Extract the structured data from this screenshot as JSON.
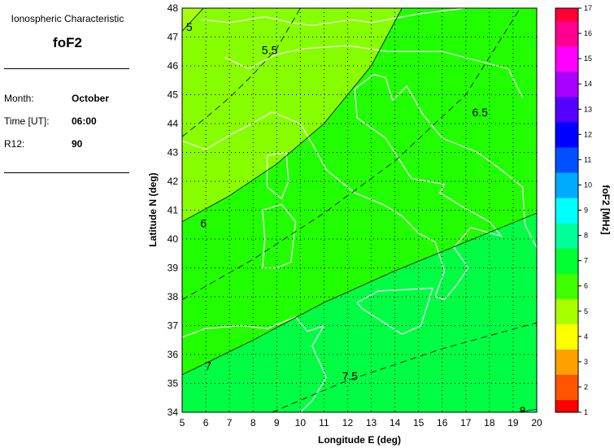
{
  "panel": {
    "heading": "Ionospheric Characteristic",
    "parameter": "foF2",
    "fields": [
      {
        "label": "Month:",
        "value": "October"
      },
      {
        "label": "Time [UT]:",
        "value": "06:00"
      },
      {
        "label": "R12:",
        "value": "90"
      }
    ]
  },
  "chart_data": {
    "type": "heatmap",
    "subtype": "filled contour map",
    "xlabel": "Longitude E (deg)",
    "ylabel": "Latitude N (deg)",
    "xlim": [
      5,
      20
    ],
    "ylim": [
      34,
      48
    ],
    "xticks": [
      5,
      6,
      7,
      8,
      9,
      10,
      11,
      12,
      13,
      14,
      15,
      16,
      17,
      18,
      19,
      20
    ],
    "yticks": [
      34,
      35,
      36,
      37,
      38,
      39,
      40,
      41,
      42,
      43,
      44,
      45,
      46,
      47,
      48
    ],
    "grid": true,
    "colorbar": {
      "label": "foF2 [MHz]",
      "range": [
        1,
        17
      ],
      "ticks": [
        1,
        2,
        3,
        4,
        5,
        6,
        7,
        8,
        9,
        10,
        11,
        12,
        13,
        14,
        15,
        16,
        17
      ],
      "colors": [
        "#ff0000",
        "#ff5500",
        "#ffa000",
        "#ffff00",
        "#a8ff00",
        "#40ff00",
        "#00ff30",
        "#00ff99",
        "#00ffff",
        "#00aaff",
        "#0050ff",
        "#0000ff",
        "#5500ff",
        "#aa00ff",
        "#ff00ff",
        "#ff0090",
        "#ff0030"
      ]
    },
    "contours": [
      {
        "level": "5",
        "style": "solid",
        "points": [
          [
            5,
            47.2
          ],
          [
            5.9,
            48
          ]
        ],
        "label_at": [
          5.3,
          47.35
        ]
      },
      {
        "level": "5.5",
        "style": "dashed",
        "points": [
          [
            5,
            43.55
          ],
          [
            6,
            44.2
          ],
          [
            7,
            44.9
          ],
          [
            8,
            45.7
          ],
          [
            9,
            46.6
          ],
          [
            10,
            48
          ]
        ],
        "label_at": [
          8.7,
          46.55
        ]
      },
      {
        "level": "6",
        "style": "solid",
        "points": [
          [
            5,
            40.6
          ],
          [
            7,
            41.5
          ],
          [
            9,
            42.6
          ],
          [
            11,
            44.0
          ],
          [
            13,
            46.0
          ],
          [
            14.3,
            48
          ]
        ],
        "label_at": [
          5.9,
          40.55
        ]
      },
      {
        "level": "6.5",
        "style": "dashed",
        "points": [
          [
            5,
            37.9
          ],
          [
            8,
            39.3
          ],
          [
            11,
            40.9
          ],
          [
            14,
            42.7
          ],
          [
            17,
            45.0
          ],
          [
            19.3,
            48
          ]
        ],
        "label_at": [
          17.6,
          44.4
        ]
      },
      {
        "level": "7",
        "style": "solid",
        "points": [
          [
            5,
            35.3
          ],
          [
            8,
            36.5
          ],
          [
            11,
            37.8
          ],
          [
            14,
            38.9
          ],
          [
            17,
            39.9
          ],
          [
            20,
            40.9
          ]
        ],
        "label_at": [
          6.1,
          35.6
        ]
      },
      {
        "level": "7.5",
        "style": "dashed",
        "points": [
          [
            8.8,
            34
          ],
          [
            12,
            35.1
          ],
          [
            16,
            36.2
          ],
          [
            20,
            37.1
          ]
        ],
        "label_at": [
          12.1,
          35.25
        ]
      },
      {
        "level": "8",
        "style": "solid",
        "points": [
          [
            19.2,
            34
          ],
          [
            20,
            34.1
          ]
        ],
        "label_at": [
          19.4,
          34.05
        ]
      }
    ],
    "band_colors": {
      "below_5": "#a8ff10",
      "5_to_6": "#88ff00",
      "6_to_7": "#22ff00",
      "7_to_8": "#00ff44",
      "above_8": "#00ff99"
    },
    "coastline_color": "#ffffff"
  }
}
